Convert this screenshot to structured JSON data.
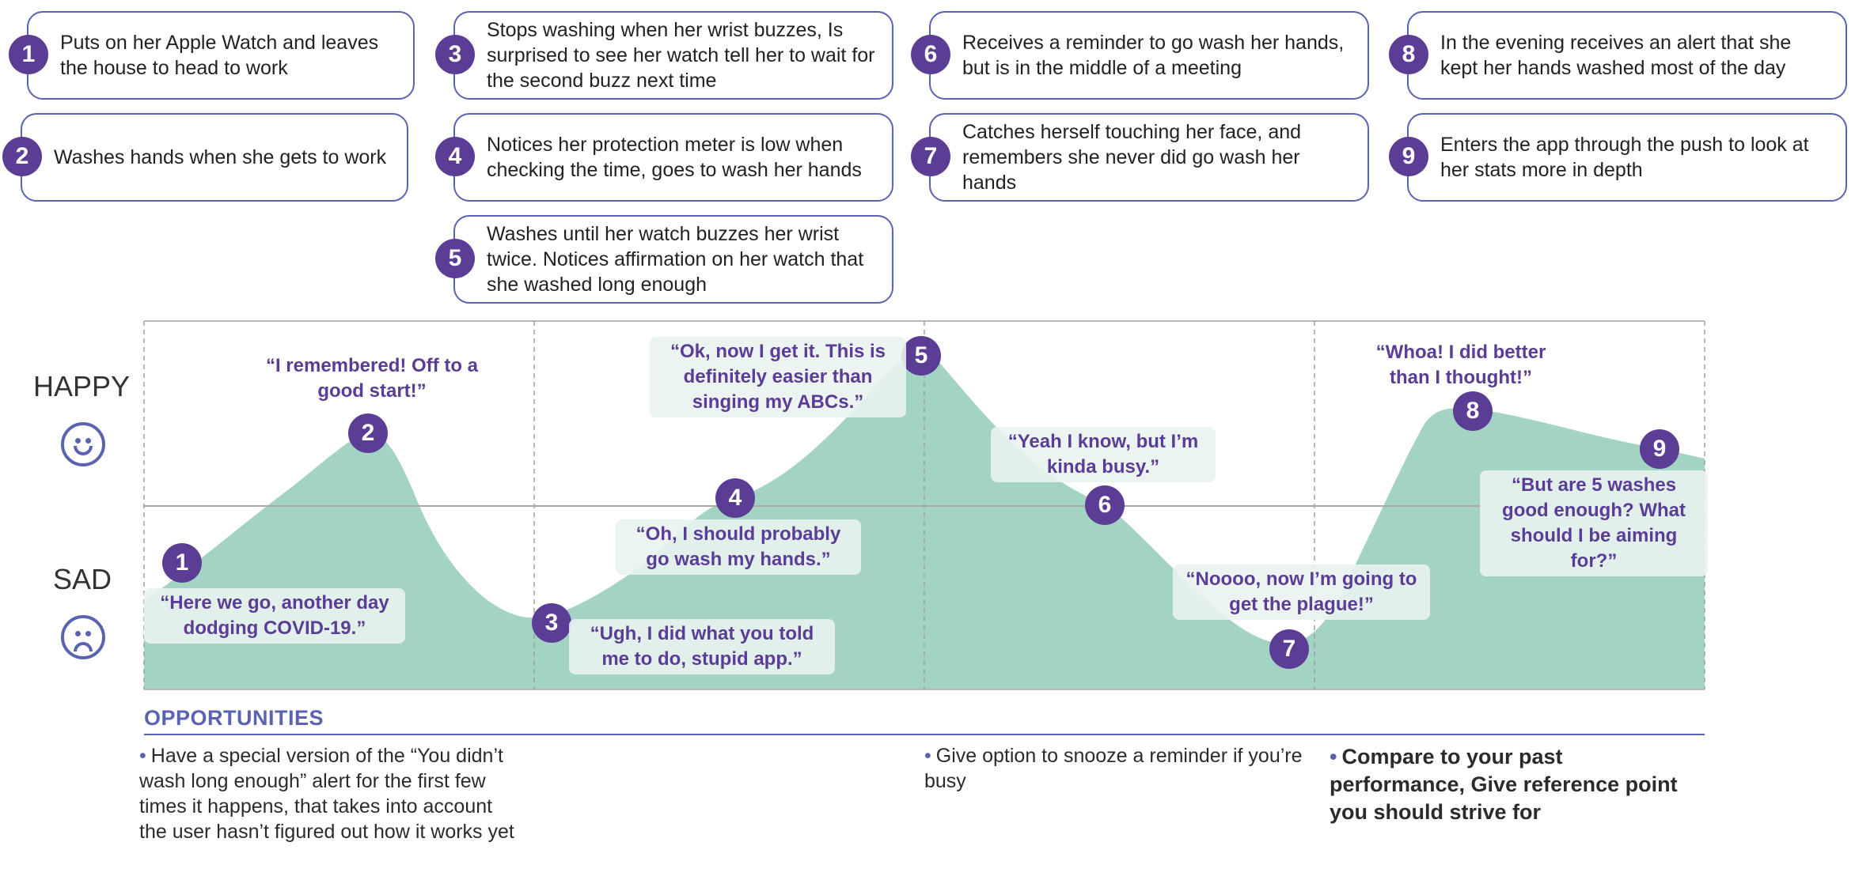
{
  "steps": [
    {
      "num": "1",
      "text": "Puts on her Apple Watch and leaves the house to head to work"
    },
    {
      "num": "2",
      "text": "Washes hands when she gets to work"
    },
    {
      "num": "3",
      "text": "Stops washing when her wrist buzzes, Is surprised to see her watch tell her to wait for the second buzz next time"
    },
    {
      "num": "4",
      "text": "Notices her protection meter is low when checking the time, goes to wash her hands"
    },
    {
      "num": "5",
      "text": "Washes until her watch buzzes her wrist twice. Notices affirmation on her watch that she washed long enough"
    },
    {
      "num": "6",
      "text": "Receives a reminder to go wash her hands, but is in the middle of a meeting"
    },
    {
      "num": "7",
      "text": "Catches herself touching her face, and remembers she never did go wash her hands"
    },
    {
      "num": "8",
      "text": "In the evening receives an alert that she kept her hands washed most of the day"
    },
    {
      "num": "9",
      "text": "Enters the app through the push to look at her stats more in depth"
    }
  ],
  "moods": {
    "happy": "HAPPY",
    "sad": "SAD"
  },
  "quotes": [
    {
      "num": "1",
      "text": "“Here  we go, another day dodging COVID-19.”"
    },
    {
      "num": "2",
      "text": "“I remembered! Off to a good start!”"
    },
    {
      "num": "3",
      "text": "“Ugh, I did what you told me to do, stupid app.”"
    },
    {
      "num": "4",
      "text": "“Oh, I should probably go wash my hands.”"
    },
    {
      "num": "5",
      "text": "“Ok, now I get it. This is definitely easier than singing my ABCs.”"
    },
    {
      "num": "6",
      "text": "“Yeah I know, but I’m kinda busy.”"
    },
    {
      "num": "7",
      "text": "“Noooo, now I’m going to get the plague!”"
    },
    {
      "num": "8",
      "text": "“Whoa! I did better than I thought!”"
    },
    {
      "num": "9",
      "text": "“But are 5 washes good enough? What should I be aiming for?”"
    }
  ],
  "opportunities": {
    "title": "OPPORTUNITIES",
    "items": [
      "Have a special version of the “You didn’t wash long enough” alert for the first few times it happens, that takes into account the user hasn’t figured out how it works yet",
      "Give option to snooze a reminder if you’re busy",
      "Compare to your past performance, Give reference point you should strive for"
    ]
  },
  "colors": {
    "accent": "#5b3d96",
    "outline": "#5b63b0",
    "curve_fill": "#a3d3c3",
    "quote_text": "#5b3d96"
  }
}
